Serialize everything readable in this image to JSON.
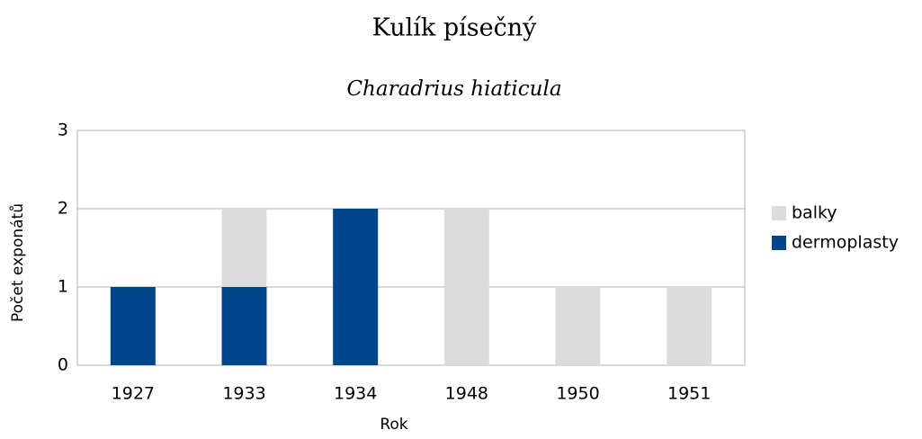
{
  "chart_data": {
    "type": "stacked_bar",
    "title": "Kulík písečný",
    "subtitle": "Charadrius hiaticula",
    "xlabel": "Rok",
    "ylabel": "Počet exponátů",
    "categories": [
      "1927",
      "1933",
      "1934",
      "1948",
      "1950",
      "1951"
    ],
    "series": [
      {
        "name": "dermoplasty",
        "color": "#00468b",
        "values": [
          1,
          1,
          2,
          0,
          0,
          0
        ]
      },
      {
        "name": "balky",
        "color": "#dcdcdc",
        "values": [
          0,
          1,
          0,
          2,
          1,
          1
        ]
      }
    ],
    "ylim": [
      0,
      3
    ],
    "yticks": [
      0,
      1,
      2,
      3
    ],
    "grid": true,
    "legend": "right"
  }
}
